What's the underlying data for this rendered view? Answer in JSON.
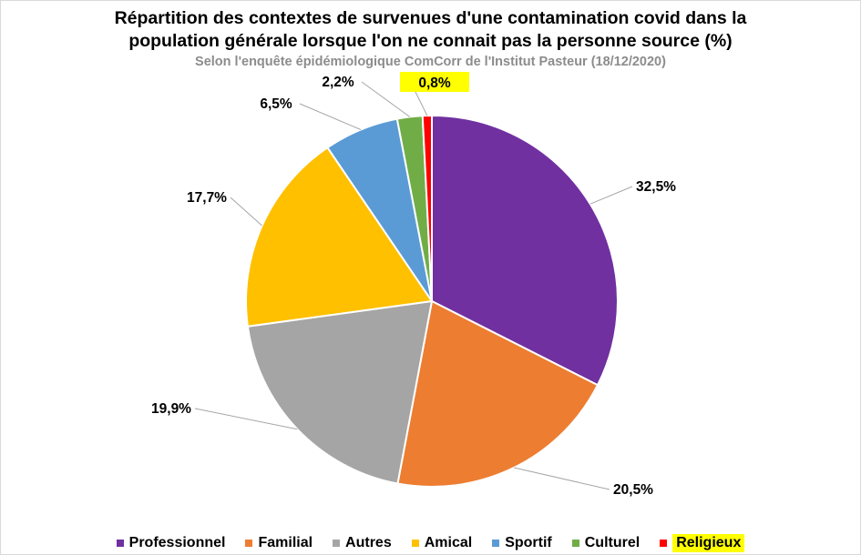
{
  "chart_data": {
    "type": "pie",
    "title_line1": "Répartition des contextes de survenues d'une contamination covid dans la",
    "title_line2": "population générale lorsque l'on ne connait pas la personne source (%)",
    "subtitle": "Selon l'enquête épidémiologique ComCorr de l'Institut Pasteur (18/12/2020)",
    "slices": [
      {
        "name": "Professionnel",
        "value": 32.5,
        "label": "32,5%",
        "color": "#7030a0"
      },
      {
        "name": "Familial",
        "value": 20.5,
        "label": "20,5%",
        "color": "#ed7d31"
      },
      {
        "name": "Autres",
        "value": 19.9,
        "label": "19,9%",
        "color": "#a5a5a5"
      },
      {
        "name": "Amical",
        "value": 17.7,
        "label": "17,7%",
        "color": "#ffc000"
      },
      {
        "name": "Sportif",
        "value": 6.5,
        "label": "6,5%",
        "color": "#5b9bd5"
      },
      {
        "name": "Culturel",
        "value": 2.2,
        "label": "2,2%",
        "color": "#70ad47"
      },
      {
        "name": "Religieux",
        "value": 0.8,
        "label": "0,8%",
        "color": "#ff0000",
        "highlight": true
      }
    ],
    "legend_position": "bottom",
    "highlight_color": "#ffff00"
  }
}
